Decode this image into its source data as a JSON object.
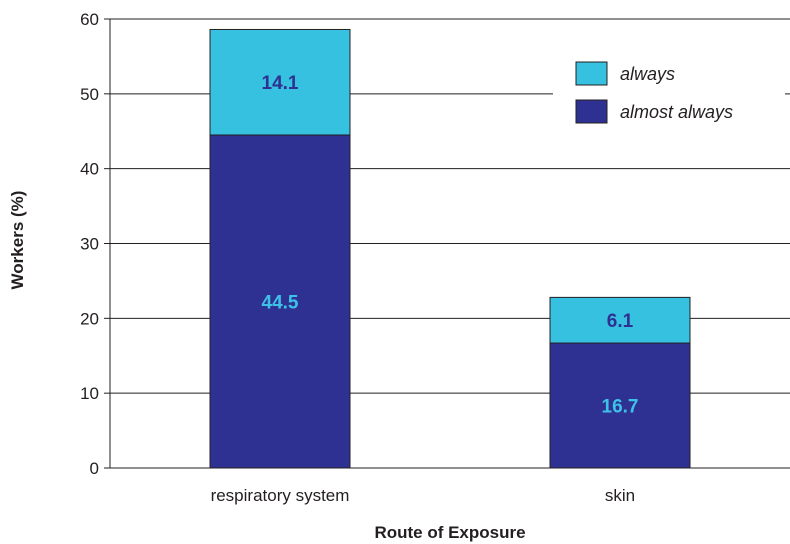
{
  "chart_data": {
    "type": "bar",
    "stacked": true,
    "categories": [
      "respiratory system",
      "skin"
    ],
    "series": [
      {
        "name": "almost always",
        "values": [
          44.5,
          16.7
        ],
        "color": "#2e3192",
        "label_color": "#3ec1e6"
      },
      {
        "name": "always",
        "values": [
          14.1,
          6.1
        ],
        "color": "#37c1e1",
        "label_color": "#2e3192"
      }
    ],
    "xlabel": "Route of Exposure",
    "ylabel": "Workers (%)",
    "ylim": [
      0,
      60
    ],
    "yticks": [
      0,
      10,
      20,
      30,
      40,
      50,
      60
    ],
    "grid": true,
    "legend_position": "top-right",
    "legend_order": [
      "always",
      "almost always"
    ],
    "axis_color": "#231f20"
  }
}
